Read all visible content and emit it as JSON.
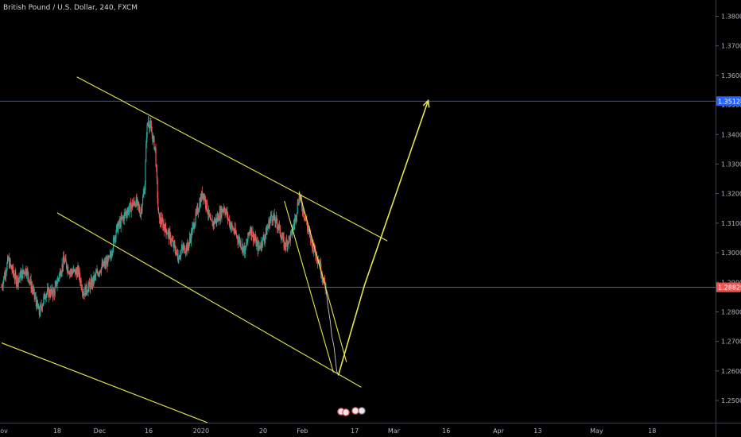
{
  "header": {
    "title": "British Pound / U.S. Dollar, 240, FXCM"
  },
  "colors": {
    "background": "#000000",
    "up": "#26a69a",
    "down": "#ef5350",
    "trendline": "#e6e64a",
    "blue_line": "#2962ff",
    "red_line": "#ef5350",
    "path": "#c8c8c8"
  },
  "chart_data": {
    "type": "candlestick",
    "symbol": "British Pound / U.S. Dollar",
    "interval": "240",
    "source": "FXCM",
    "y_range": [
      1.2425,
      1.3855
    ],
    "y_ticks": [
      "1.38000",
      "1.37000",
      "1.36000",
      "1.35000",
      "1.34000",
      "1.33000",
      "1.32000",
      "1.31000",
      "1.30000",
      "1.29000",
      "1.28000",
      "1.27000",
      "1.26000",
      "1.25000"
    ],
    "x_ticks": [
      "Nov",
      "18",
      "Dec",
      "16",
      "2020",
      "20",
      "Feb",
      "17",
      "Mar",
      "16",
      "Apr",
      "13",
      "May",
      "18"
    ],
    "x_tick_days": [
      0,
      17,
      30,
      45,
      61,
      80,
      92,
      108,
      120,
      136,
      152,
      164,
      182,
      199
    ],
    "x_range_days": [
      -0.5,
      218.4
    ],
    "price_labels": [
      {
        "value": "1.35128",
        "price": 1.35128,
        "color": "#2962ff"
      },
      {
        "value": "1.28829",
        "price": 1.28829,
        "color": "#ef5350"
      }
    ],
    "anchors": [
      {
        "d": 0.0,
        "p": 1.2885
      },
      {
        "d": 2.0,
        "p": 1.2975
      },
      {
        "d": 4.5,
        "p": 1.2905
      },
      {
        "d": 7.5,
        "p": 1.2945
      },
      {
        "d": 10.0,
        "p": 1.2855
      },
      {
        "d": 11.5,
        "p": 1.2795
      },
      {
        "d": 13.5,
        "p": 1.2865
      },
      {
        "d": 16.0,
        "p": 1.2865
      },
      {
        "d": 19.0,
        "p": 1.2975
      },
      {
        "d": 21.0,
        "p": 1.2935
      },
      {
        "d": 23.5,
        "p": 1.2935
      },
      {
        "d": 25.0,
        "p": 1.2865
      },
      {
        "d": 27.5,
        "p": 1.2895
      },
      {
        "d": 30.0,
        "p": 1.2945
      },
      {
        "d": 33.0,
        "p": 1.2975
      },
      {
        "d": 35.0,
        "p": 1.3075
      },
      {
        "d": 38.0,
        "p": 1.3135
      },
      {
        "d": 41.0,
        "p": 1.3175
      },
      {
        "d": 42.5,
        "p": 1.3135
      },
      {
        "d": 43.8,
        "p": 1.3225
      },
      {
        "d": 44.3,
        "p": 1.34
      },
      {
        "d": 44.8,
        "p": 1.345
      },
      {
        "d": 45.5,
        "p": 1.3425
      },
      {
        "d": 47.0,
        "p": 1.335
      },
      {
        "d": 48.0,
        "p": 1.312
      },
      {
        "d": 50.0,
        "p": 1.3085
      },
      {
        "d": 52.0,
        "p": 1.304
      },
      {
        "d": 54.0,
        "p": 1.2985
      },
      {
        "d": 55.0,
        "p": 1.301
      },
      {
        "d": 57.0,
        "p": 1.302
      },
      {
        "d": 59.0,
        "p": 1.3105
      },
      {
        "d": 61.5,
        "p": 1.3205
      },
      {
        "d": 62.5,
        "p": 1.317
      },
      {
        "d": 64.0,
        "p": 1.3095
      },
      {
        "d": 66.0,
        "p": 1.3115
      },
      {
        "d": 68.0,
        "p": 1.3155
      },
      {
        "d": 70.0,
        "p": 1.3095
      },
      {
        "d": 72.0,
        "p": 1.3055
      },
      {
        "d": 74.5,
        "p": 1.3005
      },
      {
        "d": 76.0,
        "p": 1.3085
      },
      {
        "d": 78.5,
        "p": 1.3015
      },
      {
        "d": 80.5,
        "p": 1.3055
      },
      {
        "d": 82.5,
        "p": 1.3125
      },
      {
        "d": 84.5,
        "p": 1.3095
      },
      {
        "d": 86.5,
        "p": 1.3025
      },
      {
        "d": 88.5,
        "p": 1.3055
      },
      {
        "d": 90.0,
        "p": 1.3125
      },
      {
        "d": 91.0,
        "p": 1.3195
      },
      {
        "d": 92.5,
        "p": 1.3135
      },
      {
        "d": 94.0,
        "p": 1.3065
      },
      {
        "d": 95.5,
        "p": 1.3015
      },
      {
        "d": 97.0,
        "p": 1.2975
      },
      {
        "d": 98.5,
        "p": 1.2905
      },
      {
        "d": 99.2,
        "p": 1.2883
      }
    ],
    "trendlines": [
      {
        "from": {
          "d": 23.0,
          "p": 1.3595
        },
        "to": {
          "d": 118.0,
          "p": 1.304
        }
      },
      {
        "from": {
          "d": 17.0,
          "p": 1.3135
        },
        "to": {
          "d": 110.0,
          "p": 1.2545
        }
      },
      {
        "from": {
          "d": 0.0,
          "p": 1.2695
        },
        "to": {
          "d": 63.0,
          "p": 1.2425
        }
      },
      {
        "from": {
          "d": 91.0,
          "p": 1.3205
        },
        "to": {
          "d": 105.5,
          "p": 1.263
        }
      },
      {
        "from": {
          "d": 86.5,
          "p": 1.3175
        },
        "to": {
          "d": 101.5,
          "p": 1.2595
        }
      }
    ],
    "projection": [
      {
        "d": 99.2,
        "p": 1.288
      },
      {
        "d": 99.8,
        "p": 1.282
      },
      {
        "d": 100.5,
        "p": 1.277
      },
      {
        "d": 101.0,
        "p": 1.272
      },
      {
        "d": 101.7,
        "p": 1.268
      },
      {
        "d": 102.5,
        "p": 1.26
      },
      {
        "d": 103.0,
        "p": 1.2585
      },
      {
        "d": 111.0,
        "p": 1.289
      },
      {
        "d": 130.5,
        "p": 1.3515
      }
    ],
    "hlines": [
      {
        "price": 1.35128,
        "color": "#2962ff"
      },
      {
        "price": 1.28829,
        "color": "#ef5350"
      }
    ]
  }
}
